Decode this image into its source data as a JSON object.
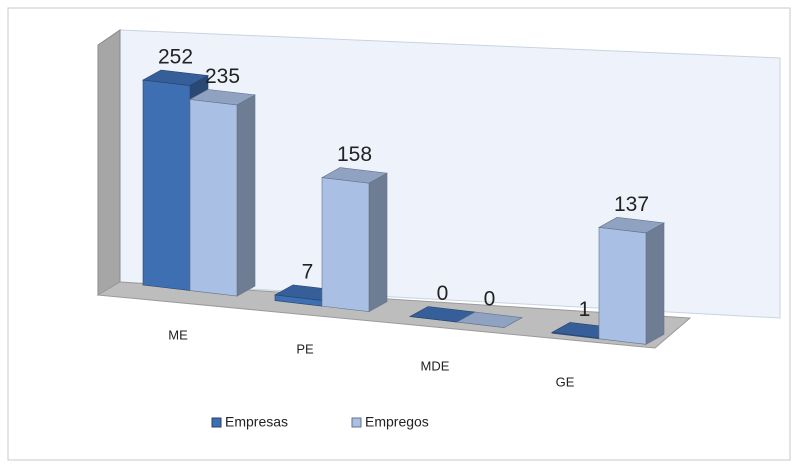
{
  "chart_data": {
    "type": "bar3d",
    "categories": [
      "ME",
      "PE",
      "MDE",
      "GE"
    ],
    "series": [
      {
        "name": "Empresas",
        "color": "#3f6fb3",
        "values": [
          252,
          7,
          0,
          1
        ]
      },
      {
        "name": "Empregos",
        "color": "#a9bfe3",
        "values": [
          235,
          158,
          0,
          137
        ]
      }
    ],
    "legend": "bottom"
  }
}
